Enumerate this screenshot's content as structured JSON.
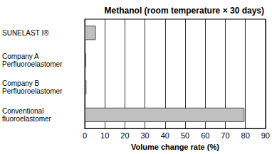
{
  "chart_data": {
    "type": "bar",
    "orientation": "horizontal",
    "title": "Methanol (room temperature × 30 days)",
    "x_label": "Volume change rate (%)",
    "categories": [
      "SUNELAST I®",
      "Company A Perfluoroelastomer",
      "Company B Perfluoroelastomer",
      "Conventional fluoroelastomer"
    ],
    "values": [
      5.5,
      0.7,
      0.8,
      79.5
    ],
    "color": "#c0c0c0",
    "xlim": [
      0,
      90
    ],
    "xticks": [
      0,
      10,
      20,
      30,
      40,
      50,
      60,
      70,
      80,
      90
    ],
    "grid": true
  }
}
